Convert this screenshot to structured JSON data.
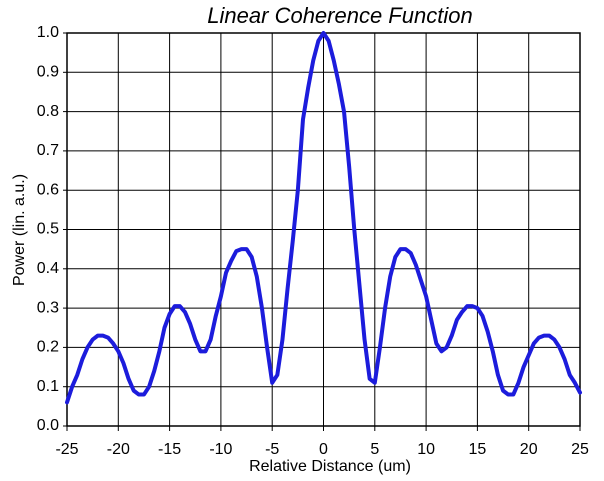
{
  "chart_data": {
    "type": "line",
    "title": "Linear Coherence Function",
    "xlabel": "Relative Distance (um)",
    "ylabel": "Power (lin. a.u.)",
    "x": [
      -25,
      -24.5,
      -24,
      -23.5,
      -23,
      -22.5,
      -22,
      -21.5,
      -21,
      -20.5,
      -20,
      -19.5,
      -19,
      -18.5,
      -18,
      -17.5,
      -17,
      -16.5,
      -16,
      -15.5,
      -15,
      -14.5,
      -14,
      -13.5,
      -13,
      -12.5,
      -12,
      -11.5,
      -11,
      -10.5,
      -10,
      -9.5,
      -9,
      -8.5,
      -8,
      -7.5,
      -7,
      -6.5,
      -6,
      -5.5,
      -5,
      -4.5,
      -4,
      -3.5,
      -3,
      -2.5,
      -2,
      -1.5,
      -1,
      -0.5,
      0,
      0.5,
      1,
      1.5,
      2,
      2.5,
      3,
      3.5,
      4,
      4.5,
      5,
      5.5,
      6,
      6.5,
      7,
      7.5,
      8,
      8.5,
      9,
      9.5,
      10,
      10.5,
      11,
      11.5,
      12,
      12.5,
      13,
      13.5,
      14,
      14.5,
      15,
      15.5,
      16,
      16.5,
      17,
      17.5,
      18,
      18.5,
      19,
      19.5,
      20,
      20.5,
      21,
      21.5,
      22,
      22.5,
      23,
      23.5,
      24,
      24.5,
      25
    ],
    "series": [
      {
        "color": "#1c1cdc",
        "values": [
          0.06,
          0.1,
          0.13,
          0.17,
          0.2,
          0.22,
          0.23,
          0.23,
          0.225,
          0.21,
          0.19,
          0.16,
          0.12,
          0.09,
          0.08,
          0.08,
          0.1,
          0.14,
          0.19,
          0.25,
          0.285,
          0.305,
          0.305,
          0.29,
          0.26,
          0.22,
          0.19,
          0.19,
          0.22,
          0.28,
          0.33,
          0.39,
          0.42,
          0.445,
          0.45,
          0.45,
          0.43,
          0.38,
          0.3,
          0.2,
          0.11,
          0.13,
          0.22,
          0.35,
          0.47,
          0.6,
          0.78,
          0.86,
          0.93,
          0.98,
          1.0,
          0.98,
          0.93,
          0.87,
          0.8,
          0.66,
          0.5,
          0.36,
          0.22,
          0.12,
          0.11,
          0.2,
          0.3,
          0.38,
          0.43,
          0.45,
          0.45,
          0.44,
          0.41,
          0.37,
          0.33,
          0.27,
          0.21,
          0.19,
          0.2,
          0.23,
          0.27,
          0.29,
          0.305,
          0.305,
          0.3,
          0.28,
          0.24,
          0.19,
          0.13,
          0.09,
          0.08,
          0.08,
          0.11,
          0.15,
          0.18,
          0.21,
          0.225,
          0.23,
          0.23,
          0.22,
          0.2,
          0.17,
          0.13,
          0.11,
          0.085
        ]
      }
    ],
    "xlim": [
      -25,
      25
    ],
    "xticks": [
      -25,
      -20,
      -15,
      -10,
      -5,
      0,
      5,
      10,
      15,
      20,
      25
    ],
    "ylim": [
      0,
      1
    ],
    "yticks": [
      {
        "value": 0,
        "label": "0.0"
      },
      0.1,
      0.2,
      0.3,
      0.4,
      0.5,
      0.6,
      0.7,
      0.8,
      0.9,
      {
        "value": 1,
        "label": "1.0"
      }
    ],
    "grid": true
  }
}
